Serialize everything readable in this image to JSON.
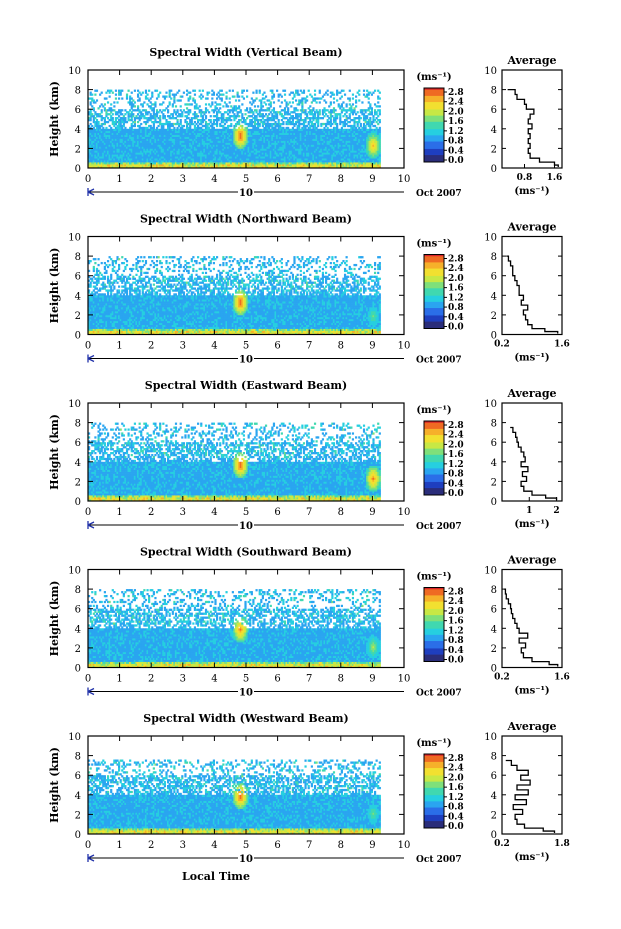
{
  "colors": {
    "colormap": [
      "#2a2d7a",
      "#1f3fbf",
      "#2b6ee8",
      "#2aa5f0",
      "#26cfe0",
      "#40d8b0",
      "#7fe07a",
      "#c8e845",
      "#f2e030",
      "#f6b02a",
      "#ef6a23",
      "#d8242a"
    ],
    "axis": "#000000"
  },
  "chart_data": [
    {
      "type": "heatmap",
      "title": "Spectral Width (Vertical Beam)",
      "ylabel": "Height (km)",
      "x_ticks": [
        "0",
        "1",
        "2",
        "3",
        "4",
        "5",
        "6",
        "7",
        "8",
        "9",
        "10"
      ],
      "y_ticks": [
        "0",
        "2",
        "4",
        "6",
        "8",
        "10"
      ],
      "xlim": [
        0,
        10
      ],
      "ylim": [
        0,
        10
      ],
      "date_label": "10",
      "month_label": "Oct 2007",
      "colorbar": {
        "unit": "(ms⁻¹)",
        "ticks": [
          "0.0",
          "0.4",
          "0.8",
          "1.2",
          "1.6",
          "2.0",
          "2.4",
          "2.8"
        ],
        "range": [
          0,
          2.8
        ]
      },
      "data_extent": {
        "x": [
          0,
          9.2
        ],
        "y": [
          0,
          8.0
        ]
      },
      "hotspots": [
        {
          "x": 4.8,
          "y": 3.2,
          "value": 2.8
        },
        {
          "x": 9.0,
          "y": 2.2,
          "value": 2.4
        }
      ],
      "average_profile": {
        "title": "Average",
        "xlabel": "(ms⁻¹)",
        "x_ticks": [
          "0.8",
          "1.6"
        ],
        "xlim": [
          0.2,
          1.8
        ],
        "y_ticks": [
          "0",
          "2",
          "4",
          "6",
          "8",
          "10"
        ],
        "ylim": [
          0,
          10
        ],
        "height": [
          0.1,
          0.3,
          0.6,
          1.0,
          1.5,
          2.0,
          2.5,
          3.0,
          3.5,
          4.0,
          4.5,
          5.0,
          5.5,
          6.0,
          6.5,
          7.0,
          7.5,
          8.0
        ],
        "value": [
          1.7,
          1.6,
          1.2,
          0.95,
          0.9,
          0.95,
          0.9,
          0.95,
          0.9,
          1.0,
          0.9,
          0.95,
          1.05,
          0.85,
          0.8,
          0.6,
          0.55,
          0.35
        ]
      }
    },
    {
      "type": "heatmap",
      "title": "Spectral Width (Northward Beam)",
      "ylabel": "Height (km)",
      "x_ticks": [
        "0",
        "1",
        "2",
        "3",
        "4",
        "5",
        "6",
        "7",
        "8",
        "9",
        "10"
      ],
      "y_ticks": [
        "0",
        "2",
        "4",
        "6",
        "8",
        "10"
      ],
      "xlim": [
        0,
        10
      ],
      "ylim": [
        0,
        10
      ],
      "date_label": "10",
      "month_label": "Oct 2007",
      "colorbar": {
        "unit": "(ms⁻¹)",
        "ticks": [
          "0.0",
          "0.4",
          "0.8",
          "1.2",
          "1.6",
          "2.0",
          "2.4",
          "2.8"
        ],
        "range": [
          0,
          2.8
        ]
      },
      "data_extent": {
        "x": [
          0,
          9.2
        ],
        "y": [
          0,
          8.0
        ]
      },
      "hotspots": [
        {
          "x": 4.8,
          "y": 3.2,
          "value": 2.8
        },
        {
          "x": 9.0,
          "y": 1.8,
          "value": 1.6
        }
      ],
      "average_profile": {
        "title": "Average",
        "xlabel": "(ms⁻¹)",
        "x_ticks": [
          "0.2",
          "1.6"
        ],
        "xlim": [
          0.2,
          1.6
        ],
        "y_ticks": [
          "0",
          "2",
          "4",
          "6",
          "8",
          "10"
        ],
        "ylim": [
          0,
          10
        ],
        "height": [
          0.1,
          0.3,
          0.6,
          1.0,
          1.5,
          2.0,
          2.5,
          3.0,
          3.5,
          4.0,
          4.5,
          5.0,
          5.5,
          6.0,
          6.5,
          7.0,
          7.5,
          8.0
        ],
        "value": [
          1.5,
          1.2,
          0.9,
          0.8,
          0.75,
          0.7,
          0.8,
          0.65,
          0.7,
          0.6,
          0.6,
          0.55,
          0.5,
          0.45,
          0.45,
          0.4,
          0.35,
          0.3
        ]
      }
    },
    {
      "type": "heatmap",
      "title": "Spectral Width (Eastward Beam)",
      "ylabel": "Height (km)",
      "x_ticks": [
        "0",
        "1",
        "2",
        "3",
        "4",
        "5",
        "6",
        "7",
        "8",
        "9",
        "10"
      ],
      "y_ticks": [
        "0",
        "2",
        "4",
        "6",
        "8",
        "10"
      ],
      "xlim": [
        0,
        10
      ],
      "ylim": [
        0,
        10
      ],
      "date_label": "10",
      "month_label": "Oct 2007",
      "colorbar": {
        "unit": "(ms⁻¹)",
        "ticks": [
          "0.0",
          "0.4",
          "0.8",
          "1.2",
          "1.6",
          "2.0",
          "2.4",
          "2.8"
        ],
        "range": [
          0,
          2.8
        ]
      },
      "data_extent": {
        "x": [
          0,
          9.2
        ],
        "y": [
          0,
          8.0
        ]
      },
      "hotspots": [
        {
          "x": 4.8,
          "y": 3.6,
          "value": 2.8
        },
        {
          "x": 9.0,
          "y": 2.2,
          "value": 2.6
        }
      ],
      "average_profile": {
        "title": "Average",
        "xlabel": "(ms⁻¹)",
        "x_ticks": [
          "1",
          "2"
        ],
        "xlim": [
          0,
          2.2
        ],
        "y_ticks": [
          "0",
          "2",
          "4",
          "6",
          "8",
          "10"
        ],
        "ylim": [
          0,
          10
        ],
        "height": [
          0.1,
          0.3,
          0.6,
          1.0,
          1.5,
          2.0,
          2.5,
          3.0,
          3.5,
          4.0,
          4.5,
          5.0,
          5.5,
          6.0,
          6.5,
          7.0,
          7.5
        ],
        "value": [
          2.0,
          1.6,
          1.1,
          0.8,
          0.7,
          0.9,
          0.75,
          0.95,
          0.7,
          0.85,
          0.8,
          0.7,
          0.6,
          0.55,
          0.5,
          0.4,
          0.3
        ]
      }
    },
    {
      "type": "heatmap",
      "title": "Spectral Width (Southward Beam)",
      "ylabel": "Height (km)",
      "x_ticks": [
        "0",
        "1",
        "2",
        "3",
        "4",
        "5",
        "6",
        "7",
        "8",
        "9",
        "10"
      ],
      "y_ticks": [
        "0",
        "2",
        "4",
        "6",
        "8",
        "10"
      ],
      "xlim": [
        0,
        10
      ],
      "ylim": [
        0,
        10
      ],
      "date_label": "10",
      "month_label": "Oct 2007",
      "colorbar": {
        "unit": "(ms⁻¹)",
        "ticks": [
          "0.0",
          "0.4",
          "0.8",
          "1.2",
          "1.6",
          "2.0",
          "2.4",
          "2.8"
        ],
        "range": [
          0,
          2.8
        ]
      },
      "data_extent": {
        "x": [
          0,
          9.2
        ],
        "y": [
          0,
          8.0
        ]
      },
      "hotspots": [
        {
          "x": 4.8,
          "y": 3.8,
          "value": 2.6
        },
        {
          "x": 9.0,
          "y": 2.0,
          "value": 1.8
        }
      ],
      "average_profile": {
        "title": "Average",
        "xlabel": "(ms⁻¹)",
        "x_ticks": [
          "0.2",
          "1.6"
        ],
        "xlim": [
          0.2,
          1.6
        ],
        "y_ticks": [
          "0",
          "2",
          "4",
          "6",
          "8",
          "10"
        ],
        "ylim": [
          0,
          10
        ],
        "height": [
          0.1,
          0.3,
          0.6,
          1.0,
          1.5,
          2.0,
          2.5,
          3.0,
          3.5,
          4.0,
          4.5,
          5.0,
          5.5,
          6.0,
          6.5,
          7.0,
          7.5,
          8.0
        ],
        "value": [
          1.5,
          1.3,
          0.9,
          0.7,
          0.65,
          0.75,
          0.6,
          0.8,
          0.6,
          0.55,
          0.5,
          0.45,
          0.42,
          0.4,
          0.35,
          0.3,
          0.28,
          0.25
        ]
      }
    },
    {
      "type": "heatmap",
      "title": "Spectral Width (Westward Beam)",
      "ylabel": "Height (km)",
      "xlabel": "Local Time",
      "x_ticks": [
        "0",
        "1",
        "2",
        "3",
        "4",
        "5",
        "6",
        "7",
        "8",
        "9",
        "10"
      ],
      "y_ticks": [
        "0",
        "2",
        "4",
        "6",
        "8",
        "10"
      ],
      "xlim": [
        0,
        10
      ],
      "ylim": [
        0,
        10
      ],
      "date_label": "10",
      "month_label": "Oct 2007",
      "colorbar": {
        "unit": "(ms⁻¹)",
        "ticks": [
          "0.0",
          "0.4",
          "0.8",
          "1.2",
          "1.6",
          "2.0",
          "2.4",
          "2.8"
        ],
        "range": [
          0,
          2.8
        ]
      },
      "data_extent": {
        "x": [
          0,
          9.2
        ],
        "y": [
          0,
          7.5
        ]
      },
      "hotspots": [
        {
          "x": 4.8,
          "y": 3.8,
          "value": 2.8
        },
        {
          "x": 9.0,
          "y": 2.0,
          "value": 1.6
        }
      ],
      "average_profile": {
        "title": "Average",
        "xlabel": "(ms⁻¹)",
        "x_ticks": [
          "0.2",
          "1.8"
        ],
        "xlim": [
          0.2,
          1.8
        ],
        "y_ticks": [
          "0",
          "2",
          "4",
          "6",
          "8",
          "10"
        ],
        "ylim": [
          0,
          10
        ],
        "height": [
          0.1,
          0.3,
          0.6,
          1.0,
          1.5,
          2.0,
          2.5,
          3.0,
          3.5,
          4.0,
          4.5,
          5.0,
          5.5,
          6.0,
          6.5,
          7.0,
          7.5
        ],
        "value": [
          1.6,
          1.3,
          0.8,
          0.6,
          0.55,
          0.75,
          0.5,
          0.85,
          0.55,
          0.9,
          0.6,
          0.95,
          0.7,
          0.9,
          0.6,
          0.45,
          0.3
        ]
      }
    }
  ]
}
